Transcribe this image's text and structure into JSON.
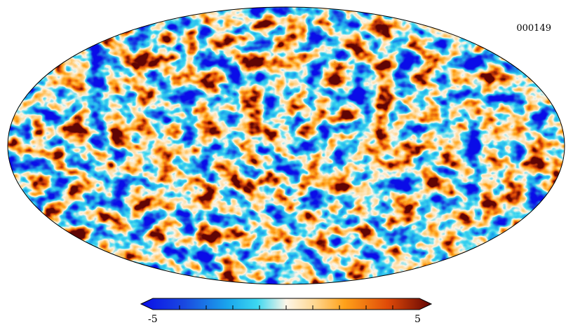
{
  "map": {
    "identifier": "000149",
    "projection": "mollweide",
    "field_description_colors": {
      "deep_blue": "#0b1fd6",
      "blue": "#1f74e6",
      "cyan": "#3ad5f2",
      "white": "#fbf4ea",
      "light_orange": "#ffd691",
      "orange": "#ffa216",
      "red_orange": "#e34a07",
      "dark_red": "#5a0202"
    }
  },
  "colorbar": {
    "min_label": "-5",
    "max_label": "5",
    "min_value": -5,
    "max_value": 5,
    "extend": "both",
    "colormap_stops": [
      {
        "pos": 0.0,
        "color": "#0a0de8"
      },
      {
        "pos": 0.15,
        "color": "#1a49e0"
      },
      {
        "pos": 0.3,
        "color": "#1aa6ec"
      },
      {
        "pos": 0.4,
        "color": "#3cd7f0"
      },
      {
        "pos": 0.5,
        "color": "#fdf6e8"
      },
      {
        "pos": 0.6,
        "color": "#ffd68f"
      },
      {
        "pos": 0.7,
        "color": "#ffa21a"
      },
      {
        "pos": 0.85,
        "color": "#e04a08"
      },
      {
        "pos": 1.0,
        "color": "#620404"
      }
    ]
  }
}
